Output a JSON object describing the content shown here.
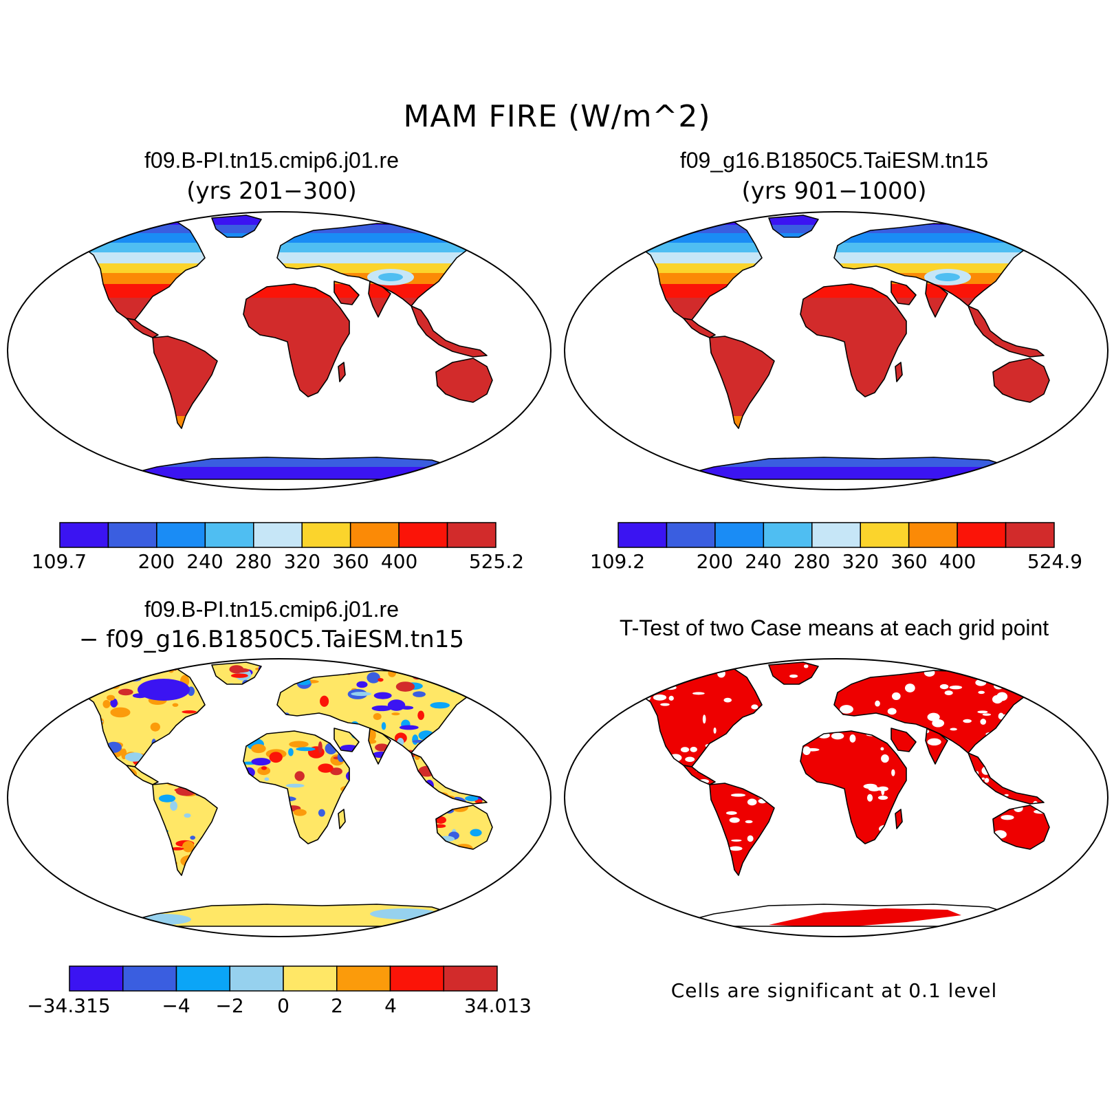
{
  "figure": {
    "title": "MAM FIRE (W/m^2)"
  },
  "panels": {
    "top_left": {
      "title": "f09.B-PI.tn15.cmip6.j01.re",
      "subtitle": "(yrs 201−300)",
      "colorbar": {
        "colors": [
          "#3b14f2",
          "#3a5ee0",
          "#1a8cf5",
          "#4fbef2",
          "#c6e6f7",
          "#fbd42c",
          "#fb8a06",
          "#fb1408",
          "#d22b2b"
        ],
        "labels": [
          "109.7",
          "200",
          "240",
          "280",
          "320",
          "360",
          "400",
          "525.2"
        ]
      }
    },
    "top_right": {
      "title": "f09_g16.B1850C5.TaiESM.tn15",
      "subtitle": "(yrs 901−1000)",
      "colorbar": {
        "colors": [
          "#3b14f2",
          "#3a5ee0",
          "#1a8cf5",
          "#4fbef2",
          "#c6e6f7",
          "#fbd42c",
          "#fb8a06",
          "#fb1408",
          "#d22b2b"
        ],
        "labels": [
          "109.2",
          "200",
          "240",
          "280",
          "320",
          "360",
          "400",
          "524.9"
        ]
      }
    },
    "bottom_left": {
      "title": "f09.B-PI.tn15.cmip6.j01.re",
      "subtitle": "− f09_g16.B1850C5.TaiESM.tn15",
      "colorbar": {
        "colors": [
          "#3b14f2",
          "#3a5ee0",
          "#0ba5f7",
          "#96d1ee",
          "#ffe766",
          "#fb9b0b",
          "#fb1408",
          "#d22b2b"
        ],
        "labels": [
          "−34.315",
          "−4",
          "−2",
          "0",
          "2",
          "4",
          "34.013"
        ]
      }
    },
    "bottom_right": {
      "title": "T-Test of two Case means at each grid point",
      "note": "Cells are significant at 0.1 level",
      "significant_color": "#ee0000"
    }
  }
}
